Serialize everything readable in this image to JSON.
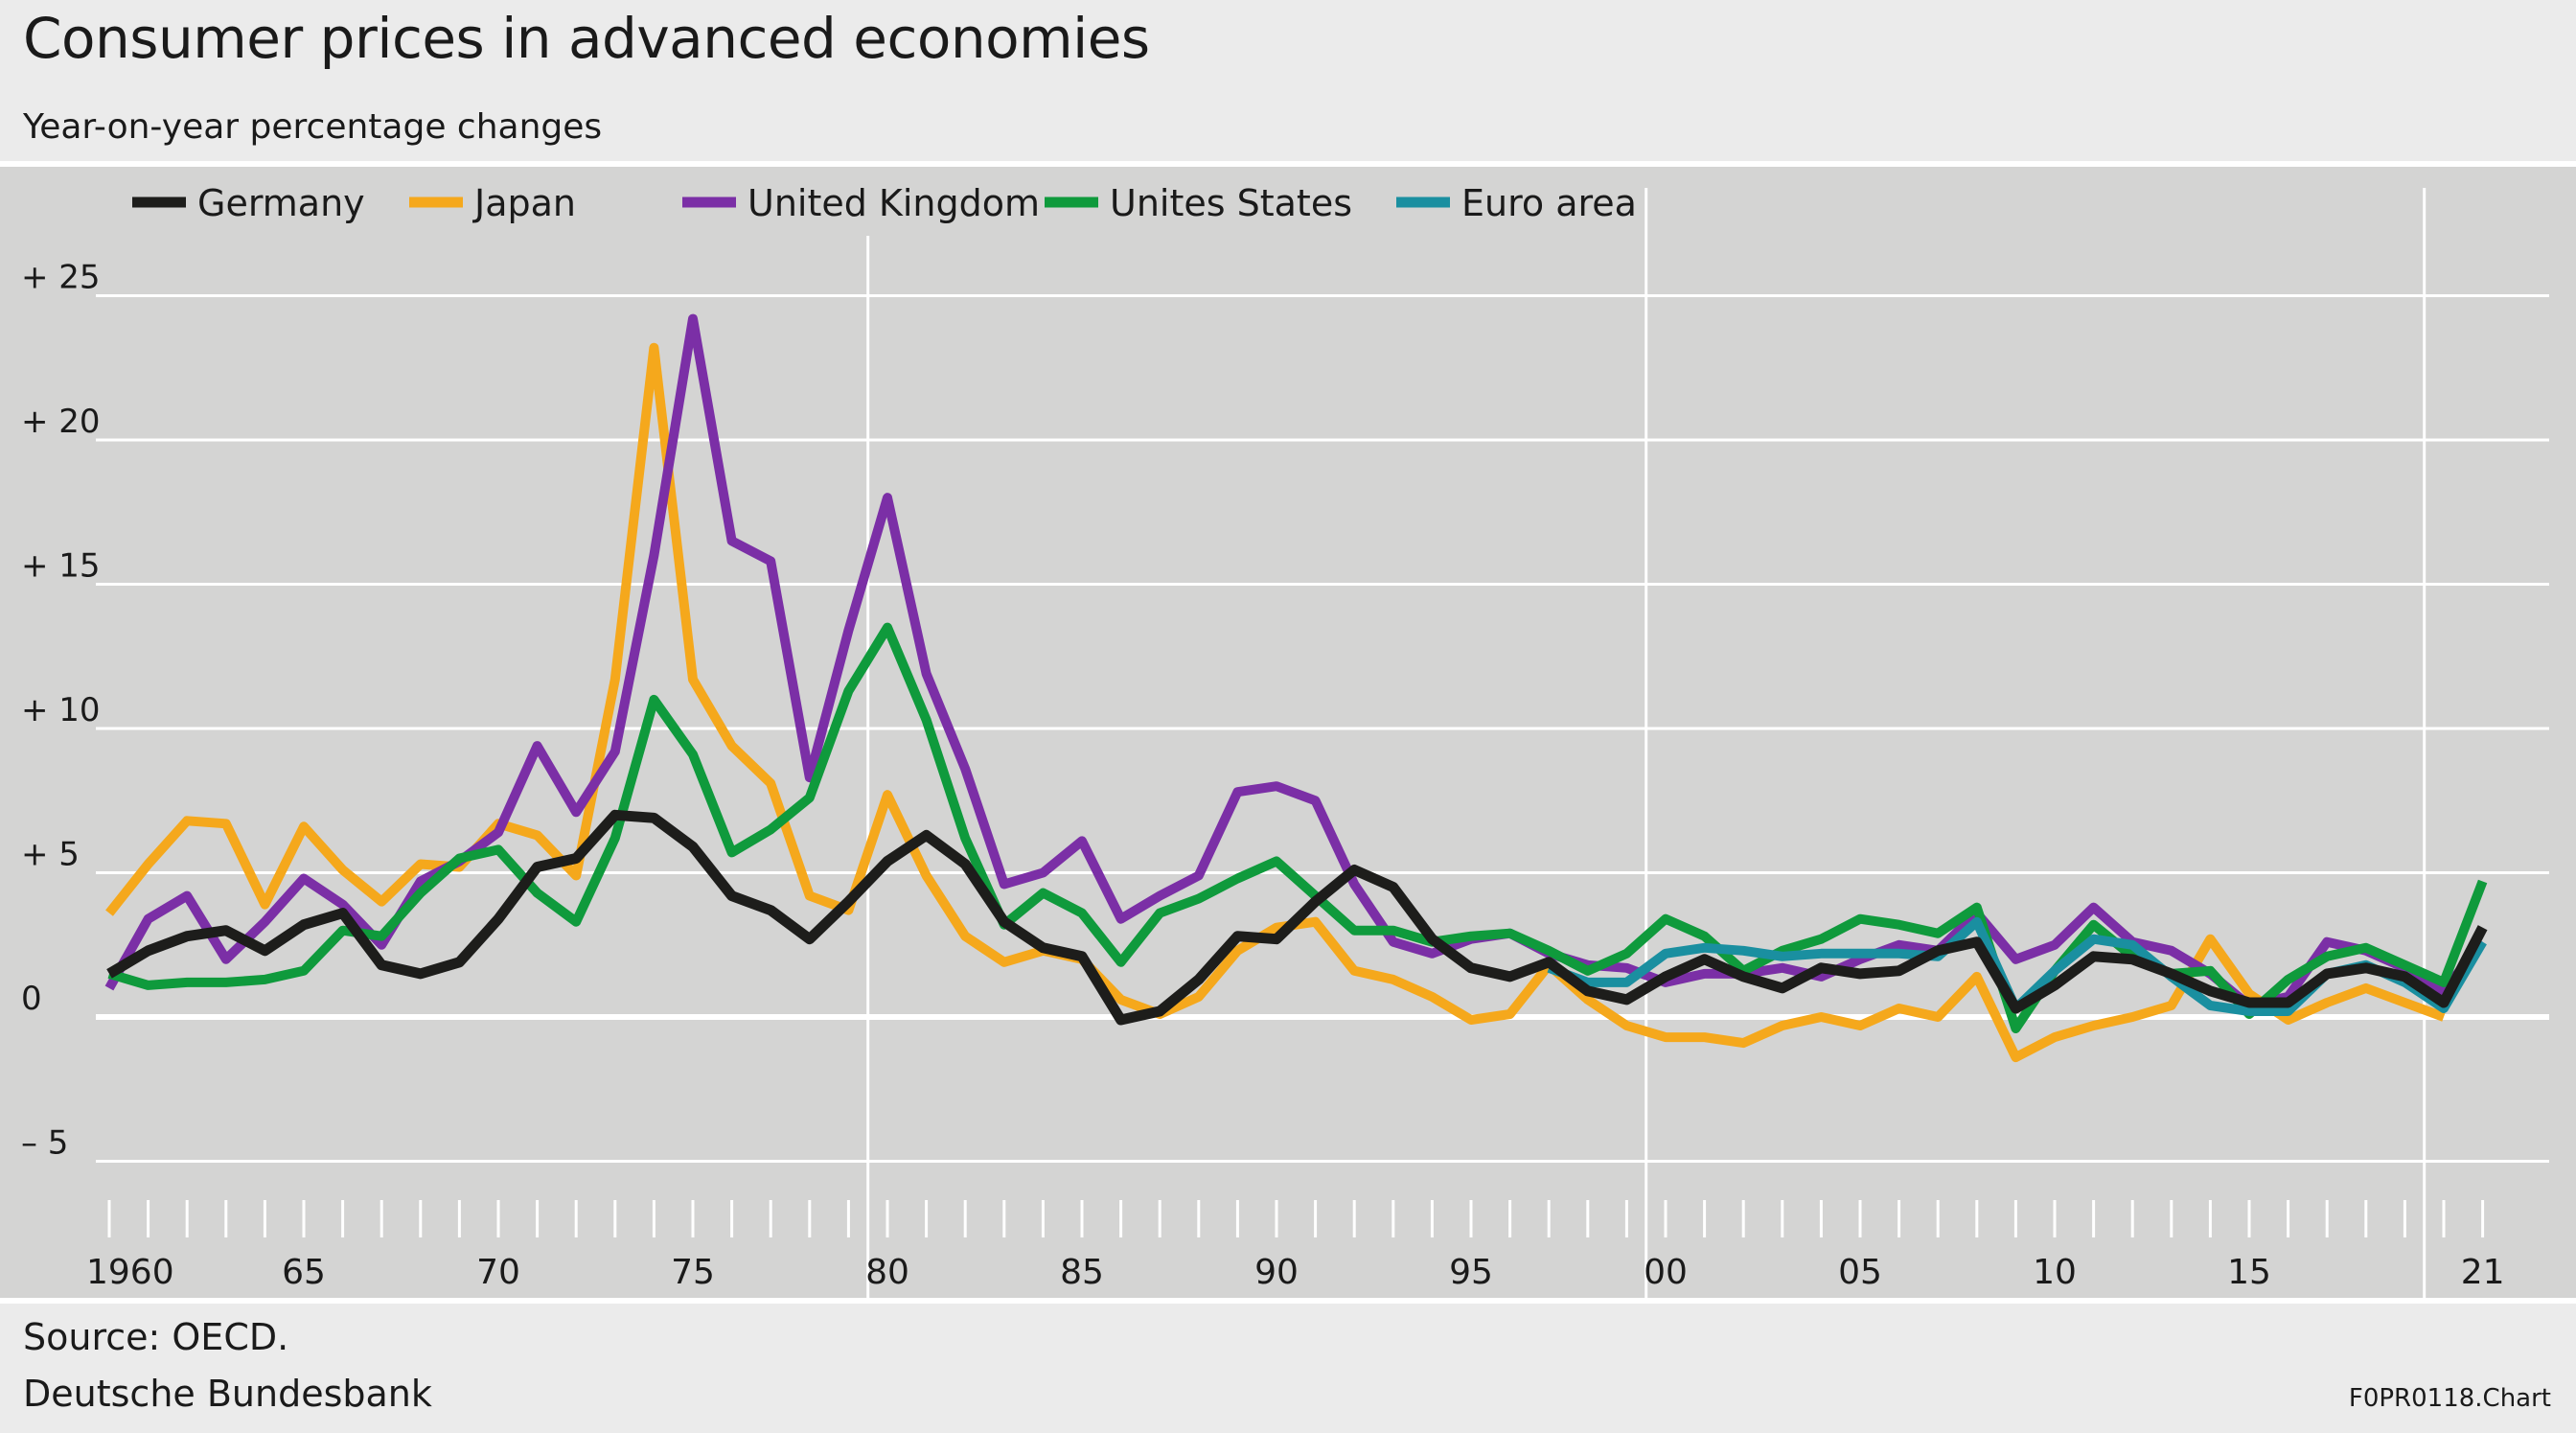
{
  "header": {
    "title": "Consumer prices in advanced economies",
    "subtitle": "Year-on-year percentage changes"
  },
  "footer": {
    "source": "Source: OECD.",
    "publisher": "Deutsche Bundesbank",
    "chart_id": "F0PR0118.Chart"
  },
  "colors": {
    "Germany": "#1d1d1b",
    "Japan": "#f5a81c",
    "United Kingdom": "#7b2fa6",
    "Unites States": "#0f9a3c",
    "Euro area": "#1a8fa0",
    "plot_background": "#d4d4d3",
    "gridline": "#ffffff"
  },
  "chart_data": {
    "type": "line",
    "title": "Consumer prices in advanced economies",
    "subtitle": "Year-on-year percentage changes",
    "xlabel": "",
    "ylabel": "",
    "legend_placement": "top-left",
    "grid": true,
    "x_range": [
      1960,
      2021
    ],
    "ylim": [
      -5,
      25
    ],
    "yticks": [
      -5,
      0,
      5,
      10,
      15,
      20,
      25
    ],
    "ytick_labels": [
      "– 5",
      "0",
      "+ 5",
      "+ 10",
      "+ 15",
      "+ 20",
      "+ 25"
    ],
    "xtick_labels": [
      {
        "year": 1960,
        "label": "1960"
      },
      {
        "year": 1965,
        "label": "65"
      },
      {
        "year": 1970,
        "label": "70"
      },
      {
        "year": 1975,
        "label": "75"
      },
      {
        "year": 1980,
        "label": "80"
      },
      {
        "year": 1985,
        "label": "85"
      },
      {
        "year": 1990,
        "label": "90"
      },
      {
        "year": 1995,
        "label": "95"
      },
      {
        "year": 2000,
        "label": "00"
      },
      {
        "year": 2005,
        "label": "05"
      },
      {
        "year": 2010,
        "label": "10"
      },
      {
        "year": 2015,
        "label": "15"
      },
      {
        "year": 2021,
        "label": "21"
      }
    ],
    "vertical_gridlines": [
      1979.5,
      1999.5,
      2019.5
    ],
    "series": [
      {
        "name": "Germany",
        "start_year": 1960,
        "values": [
          1.5,
          2.3,
          2.8,
          3.0,
          2.3,
          3.2,
          3.6,
          1.8,
          1.5,
          1.9,
          3.4,
          5.2,
          5.5,
          7.0,
          6.9,
          5.9,
          4.2,
          3.7,
          2.7,
          4.0,
          5.4,
          6.3,
          5.3,
          3.3,
          2.4,
          2.1,
          -0.1,
          0.2,
          1.3,
          2.8,
          2.7,
          4.0,
          5.1,
          4.5,
          2.7,
          1.7,
          1.4,
          1.9,
          0.9,
          0.6,
          1.4,
          2.0,
          1.4,
          1.0,
          1.7,
          1.5,
          1.6,
          2.3,
          2.6,
          0.3,
          1.1,
          2.1,
          2.0,
          1.5,
          0.9,
          0.5,
          0.5,
          1.5,
          1.7,
          1.4,
          0.5,
          3.1
        ]
      },
      {
        "name": "Japan",
        "start_year": 1960,
        "values": [
          3.6,
          5.3,
          6.8,
          6.7,
          3.9,
          6.6,
          5.1,
          4.0,
          5.3,
          5.2,
          6.7,
          6.3,
          4.9,
          11.7,
          23.2,
          11.7,
          9.4,
          8.1,
          4.2,
          3.7,
          7.7,
          4.9,
          2.8,
          1.9,
          2.3,
          2.0,
          0.6,
          0.1,
          0.7,
          2.3,
          3.1,
          3.3,
          1.6,
          1.3,
          0.7,
          -0.1,
          0.1,
          1.8,
          0.6,
          -0.3,
          -0.7,
          -0.7,
          -0.9,
          -0.3,
          0.0,
          -0.3,
          0.3,
          0.0,
          1.4,
          -1.4,
          -0.7,
          -0.3,
          0.0,
          0.4,
          2.7,
          0.8,
          -0.1,
          0.5,
          1.0,
          0.5,
          0.0
        ]
      },
      {
        "name": "United Kingdom",
        "start_year": 1960,
        "values": [
          1.0,
          3.4,
          4.2,
          2.0,
          3.3,
          4.8,
          3.9,
          2.5,
          4.7,
          5.4,
          6.4,
          9.4,
          7.1,
          9.2,
          16.0,
          24.2,
          16.5,
          15.8,
          8.3,
          13.4,
          18.0,
          11.9,
          8.6,
          4.6,
          5.0,
          6.1,
          3.4,
          4.2,
          4.9,
          7.8,
          8.0,
          7.5,
          4.6,
          2.6,
          2.2,
          2.7,
          2.9,
          2.2,
          1.8,
          1.7,
          1.2,
          1.5,
          1.5,
          1.7,
          1.4,
          2.0,
          2.5,
          2.3,
          3.6,
          2.0,
          2.5,
          3.8,
          2.6,
          2.3,
          1.5,
          0.4,
          0.7,
          2.6,
          2.3,
          1.7,
          0.9,
          2.6
        ]
      },
      {
        "name": "Unites States",
        "start_year": 1960,
        "values": [
          1.5,
          1.1,
          1.2,
          1.2,
          1.3,
          1.6,
          3.0,
          2.8,
          4.3,
          5.5,
          5.8,
          4.3,
          3.3,
          6.2,
          11.0,
          9.1,
          5.7,
          6.5,
          7.6,
          11.3,
          13.5,
          10.3,
          6.2,
          3.2,
          4.3,
          3.6,
          1.9,
          3.6,
          4.1,
          4.8,
          5.4,
          4.2,
          3.0,
          3.0,
          2.6,
          2.8,
          2.9,
          2.3,
          1.6,
          2.2,
          3.4,
          2.8,
          1.6,
          2.3,
          2.7,
          3.4,
          3.2,
          2.9,
          3.8,
          -0.4,
          1.6,
          3.2,
          2.1,
          1.5,
          1.6,
          0.1,
          1.3,
          2.1,
          2.4,
          1.8,
          1.2,
          4.7
        ]
      },
      {
        "name": "Euro area",
        "start_year": 1997,
        "values": [
          1.7,
          1.2,
          1.2,
          2.2,
          2.4,
          2.3,
          2.1,
          2.2,
          2.2,
          2.2,
          2.1,
          3.3,
          0.3,
          1.6,
          2.7,
          2.5,
          1.4,
          0.4,
          0.2,
          0.2,
          1.5,
          1.8,
          1.2,
          0.3,
          2.6
        ]
      }
    ]
  }
}
